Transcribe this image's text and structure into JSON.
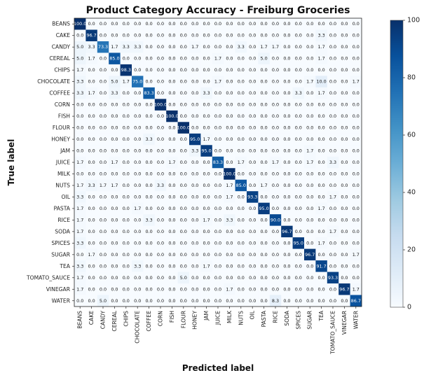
{
  "chart_data": {
    "type": "heatmap",
    "title": "Product Category Accuracy - Freiburg Groceries",
    "xlabel": "Predicted label",
    "ylabel": "True label",
    "labels": [
      "BEANS",
      "CAKE",
      "CANDY",
      "CEREAL",
      "CHIPS",
      "CHOCOLATE",
      "COFFEE",
      "CORN",
      "FISH",
      "FLOUR",
      "HONEY",
      "JAM",
      "JUICE",
      "MILK",
      "NUTS",
      "OIL",
      "PASTA",
      "RICE",
      "SODA",
      "SPICES",
      "SUGAR",
      "TEA",
      "TOMATO_SAUCE",
      "VINEGAR",
      "WATER"
    ],
    "colorbar": {
      "min": 0,
      "max": 100,
      "ticks": [
        0,
        20,
        40,
        60,
        80,
        100
      ],
      "colormap": "Blues"
    },
    "values": [
      [
        100.0,
        0.0,
        0.0,
        0.0,
        0.0,
        0.0,
        0.0,
        0.0,
        0.0,
        0.0,
        0.0,
        0.0,
        0.0,
        0.0,
        0.0,
        0.0,
        0.0,
        0.0,
        0.0,
        0.0,
        0.0,
        0.0,
        0.0,
        0.0,
        0.0
      ],
      [
        0.0,
        96.7,
        0.0,
        0.0,
        0.0,
        0.0,
        0.0,
        0.0,
        0.0,
        0.0,
        0.0,
        0.0,
        0.0,
        0.0,
        0.0,
        0.0,
        0.0,
        0.0,
        0.0,
        0.0,
        0.0,
        3.3,
        0.0,
        0.0,
        0.0
      ],
      [
        5.0,
        3.3,
        73.3,
        1.7,
        3.3,
        3.3,
        0.0,
        0.0,
        0.0,
        0.0,
        1.7,
        0.0,
        0.0,
        0.0,
        3.3,
        0.0,
        1.7,
        1.7,
        0.0,
        0.0,
        0.0,
        1.7,
        0.0,
        0.0,
        0.0
      ],
      [
        5.0,
        1.7,
        0.0,
        85.0,
        0.0,
        0.0,
        0.0,
        0.0,
        0.0,
        0.0,
        0.0,
        0.0,
        1.7,
        0.0,
        0.0,
        0.0,
        5.0,
        0.0,
        0.0,
        0.0,
        0.0,
        1.7,
        0.0,
        0.0,
        0.0
      ],
      [
        1.7,
        0.0,
        0.0,
        0.0,
        98.3,
        0.0,
        0.0,
        0.0,
        0.0,
        0.0,
        0.0,
        0.0,
        0.0,
        0.0,
        0.0,
        0.0,
        0.0,
        0.0,
        0.0,
        0.0,
        0.0,
        0.0,
        0.0,
        0.0,
        0.0
      ],
      [
        3.3,
        0.0,
        0.0,
        5.0,
        1.7,
        75.0,
        0.0,
        0.0,
        0.0,
        0.0,
        0.0,
        0.0,
        1.7,
        0.0,
        0.0,
        0.0,
        0.0,
        0.0,
        0.0,
        0.0,
        1.7,
        10.0,
        0.0,
        0.0,
        1.7
      ],
      [
        3.3,
        1.7,
        0.0,
        3.3,
        0.0,
        0.0,
        83.3,
        0.0,
        0.0,
        0.0,
        0.0,
        3.3,
        0.0,
        0.0,
        0.0,
        0.0,
        0.0,
        0.0,
        0.0,
        3.3,
        0.0,
        1.7,
        0.0,
        0.0,
        0.0
      ],
      [
        0.0,
        0.0,
        0.0,
        0.0,
        0.0,
        0.0,
        0.0,
        100.0,
        0.0,
        0.0,
        0.0,
        0.0,
        0.0,
        0.0,
        0.0,
        0.0,
        0.0,
        0.0,
        0.0,
        0.0,
        0.0,
        0.0,
        0.0,
        0.0,
        0.0
      ],
      [
        0.0,
        0.0,
        0.0,
        0.0,
        0.0,
        0.0,
        0.0,
        0.0,
        100.0,
        0.0,
        0.0,
        0.0,
        0.0,
        0.0,
        0.0,
        0.0,
        0.0,
        0.0,
        0.0,
        0.0,
        0.0,
        0.0,
        0.0,
        0.0,
        0.0
      ],
      [
        0.0,
        0.0,
        0.0,
        0.0,
        0.0,
        0.0,
        0.0,
        0.0,
        0.0,
        100.0,
        0.0,
        0.0,
        0.0,
        0.0,
        0.0,
        0.0,
        0.0,
        0.0,
        0.0,
        0.0,
        0.0,
        0.0,
        0.0,
        0.0,
        0.0
      ],
      [
        0.0,
        0.0,
        0.0,
        0.0,
        0.0,
        0.0,
        3.3,
        0.0,
        0.0,
        0.0,
        95.0,
        1.7,
        0.0,
        0.0,
        0.0,
        0.0,
        0.0,
        0.0,
        0.0,
        0.0,
        0.0,
        0.0,
        0.0,
        0.0,
        0.0
      ],
      [
        0.0,
        0.0,
        0.0,
        0.0,
        0.0,
        0.0,
        0.0,
        0.0,
        0.0,
        0.0,
        3.3,
        95.0,
        0.0,
        0.0,
        0.0,
        0.0,
        0.0,
        0.0,
        0.0,
        0.0,
        1.7,
        0.0,
        0.0,
        0.0,
        0.0
      ],
      [
        1.7,
        0.0,
        0.0,
        1.7,
        0.0,
        0.0,
        0.0,
        0.0,
        1.7,
        0.0,
        0.0,
        0.0,
        83.3,
        0.0,
        1.7,
        0.0,
        0.0,
        1.7,
        0.0,
        0.0,
        1.7,
        0.0,
        3.3,
        0.0,
        0.0
      ],
      [
        0.0,
        0.0,
        0.0,
        0.0,
        0.0,
        0.0,
        0.0,
        0.0,
        0.0,
        0.0,
        0.0,
        0.0,
        0.0,
        100.0,
        0.0,
        0.0,
        0.0,
        0.0,
        0.0,
        0.0,
        0.0,
        0.0,
        0.0,
        0.0,
        0.0
      ],
      [
        1.7,
        3.3,
        1.7,
        1.7,
        0.0,
        0.0,
        0.0,
        3.3,
        0.0,
        0.0,
        0.0,
        0.0,
        0.0,
        1.7,
        85.0,
        0.0,
        1.7,
        0.0,
        0.0,
        0.0,
        0.0,
        0.0,
        0.0,
        0.0,
        0.0
      ],
      [
        3.3,
        0.0,
        0.0,
        0.0,
        0.0,
        0.0,
        0.0,
        0.0,
        0.0,
        0.0,
        0.0,
        0.0,
        0.0,
        1.7,
        0.0,
        93.3,
        0.0,
        0.0,
        0.0,
        0.0,
        0.0,
        0.0,
        1.7,
        0.0,
        0.0
      ],
      [
        1.7,
        0.0,
        0.0,
        0.0,
        0.0,
        1.7,
        0.0,
        0.0,
        0.0,
        0.0,
        0.0,
        0.0,
        0.0,
        0.0,
        0.0,
        0.0,
        95.0,
        0.0,
        0.0,
        0.0,
        0.0,
        1.7,
        0.0,
        0.0,
        0.0
      ],
      [
        1.7,
        0.0,
        0.0,
        0.0,
        0.0,
        0.0,
        3.3,
        0.0,
        0.0,
        0.0,
        0.0,
        1.7,
        0.0,
        3.3,
        0.0,
        0.0,
        0.0,
        90.0,
        0.0,
        0.0,
        0.0,
        0.0,
        0.0,
        0.0,
        0.0
      ],
      [
        1.7,
        0.0,
        0.0,
        0.0,
        0.0,
        0.0,
        0.0,
        0.0,
        0.0,
        0.0,
        0.0,
        0.0,
        0.0,
        0.0,
        0.0,
        0.0,
        0.0,
        0.0,
        96.7,
        0.0,
        0.0,
        0.0,
        1.7,
        0.0,
        0.0
      ],
      [
        3.3,
        0.0,
        0.0,
        0.0,
        0.0,
        0.0,
        0.0,
        0.0,
        0.0,
        0.0,
        0.0,
        0.0,
        0.0,
        0.0,
        0.0,
        0.0,
        0.0,
        0.0,
        0.0,
        95.0,
        0.0,
        1.7,
        0.0,
        0.0,
        0.0
      ],
      [
        0.0,
        1.7,
        0.0,
        0.0,
        0.0,
        0.0,
        0.0,
        0.0,
        0.0,
        0.0,
        0.0,
        0.0,
        0.0,
        0.0,
        0.0,
        0.0,
        0.0,
        0.0,
        0.0,
        0.0,
        96.7,
        0.0,
        0.0,
        0.0,
        1.7
      ],
      [
        3.3,
        0.0,
        0.0,
        0.0,
        0.0,
        3.3,
        0.0,
        0.0,
        0.0,
        0.0,
        0.0,
        1.7,
        0.0,
        0.0,
        0.0,
        0.0,
        0.0,
        0.0,
        0.0,
        0.0,
        0.0,
        91.7,
        0.0,
        0.0,
        0.0
      ],
      [
        1.7,
        0.0,
        0.0,
        0.0,
        0.0,
        0.0,
        0.0,
        0.0,
        0.0,
        5.0,
        0.0,
        0.0,
        0.0,
        0.0,
        0.0,
        0.0,
        0.0,
        0.0,
        0.0,
        0.0,
        0.0,
        0.0,
        93.3,
        0.0,
        0.0
      ],
      [
        1.7,
        0.0,
        0.0,
        0.0,
        0.0,
        0.0,
        0.0,
        0.0,
        0.0,
        0.0,
        0.0,
        0.0,
        0.0,
        1.7,
        0.0,
        0.0,
        0.0,
        0.0,
        0.0,
        0.0,
        0.0,
        0.0,
        0.0,
        96.7,
        1.7
      ],
      [
        0.0,
        0.0,
        5.0,
        0.0,
        0.0,
        0.0,
        0.0,
        0.0,
        0.0,
        0.0,
        0.0,
        0.0,
        0.0,
        0.0,
        0.0,
        0.0,
        0.0,
        8.3,
        0.0,
        0.0,
        0.0,
        0.0,
        0.0,
        0.0,
        86.7
      ]
    ]
  }
}
